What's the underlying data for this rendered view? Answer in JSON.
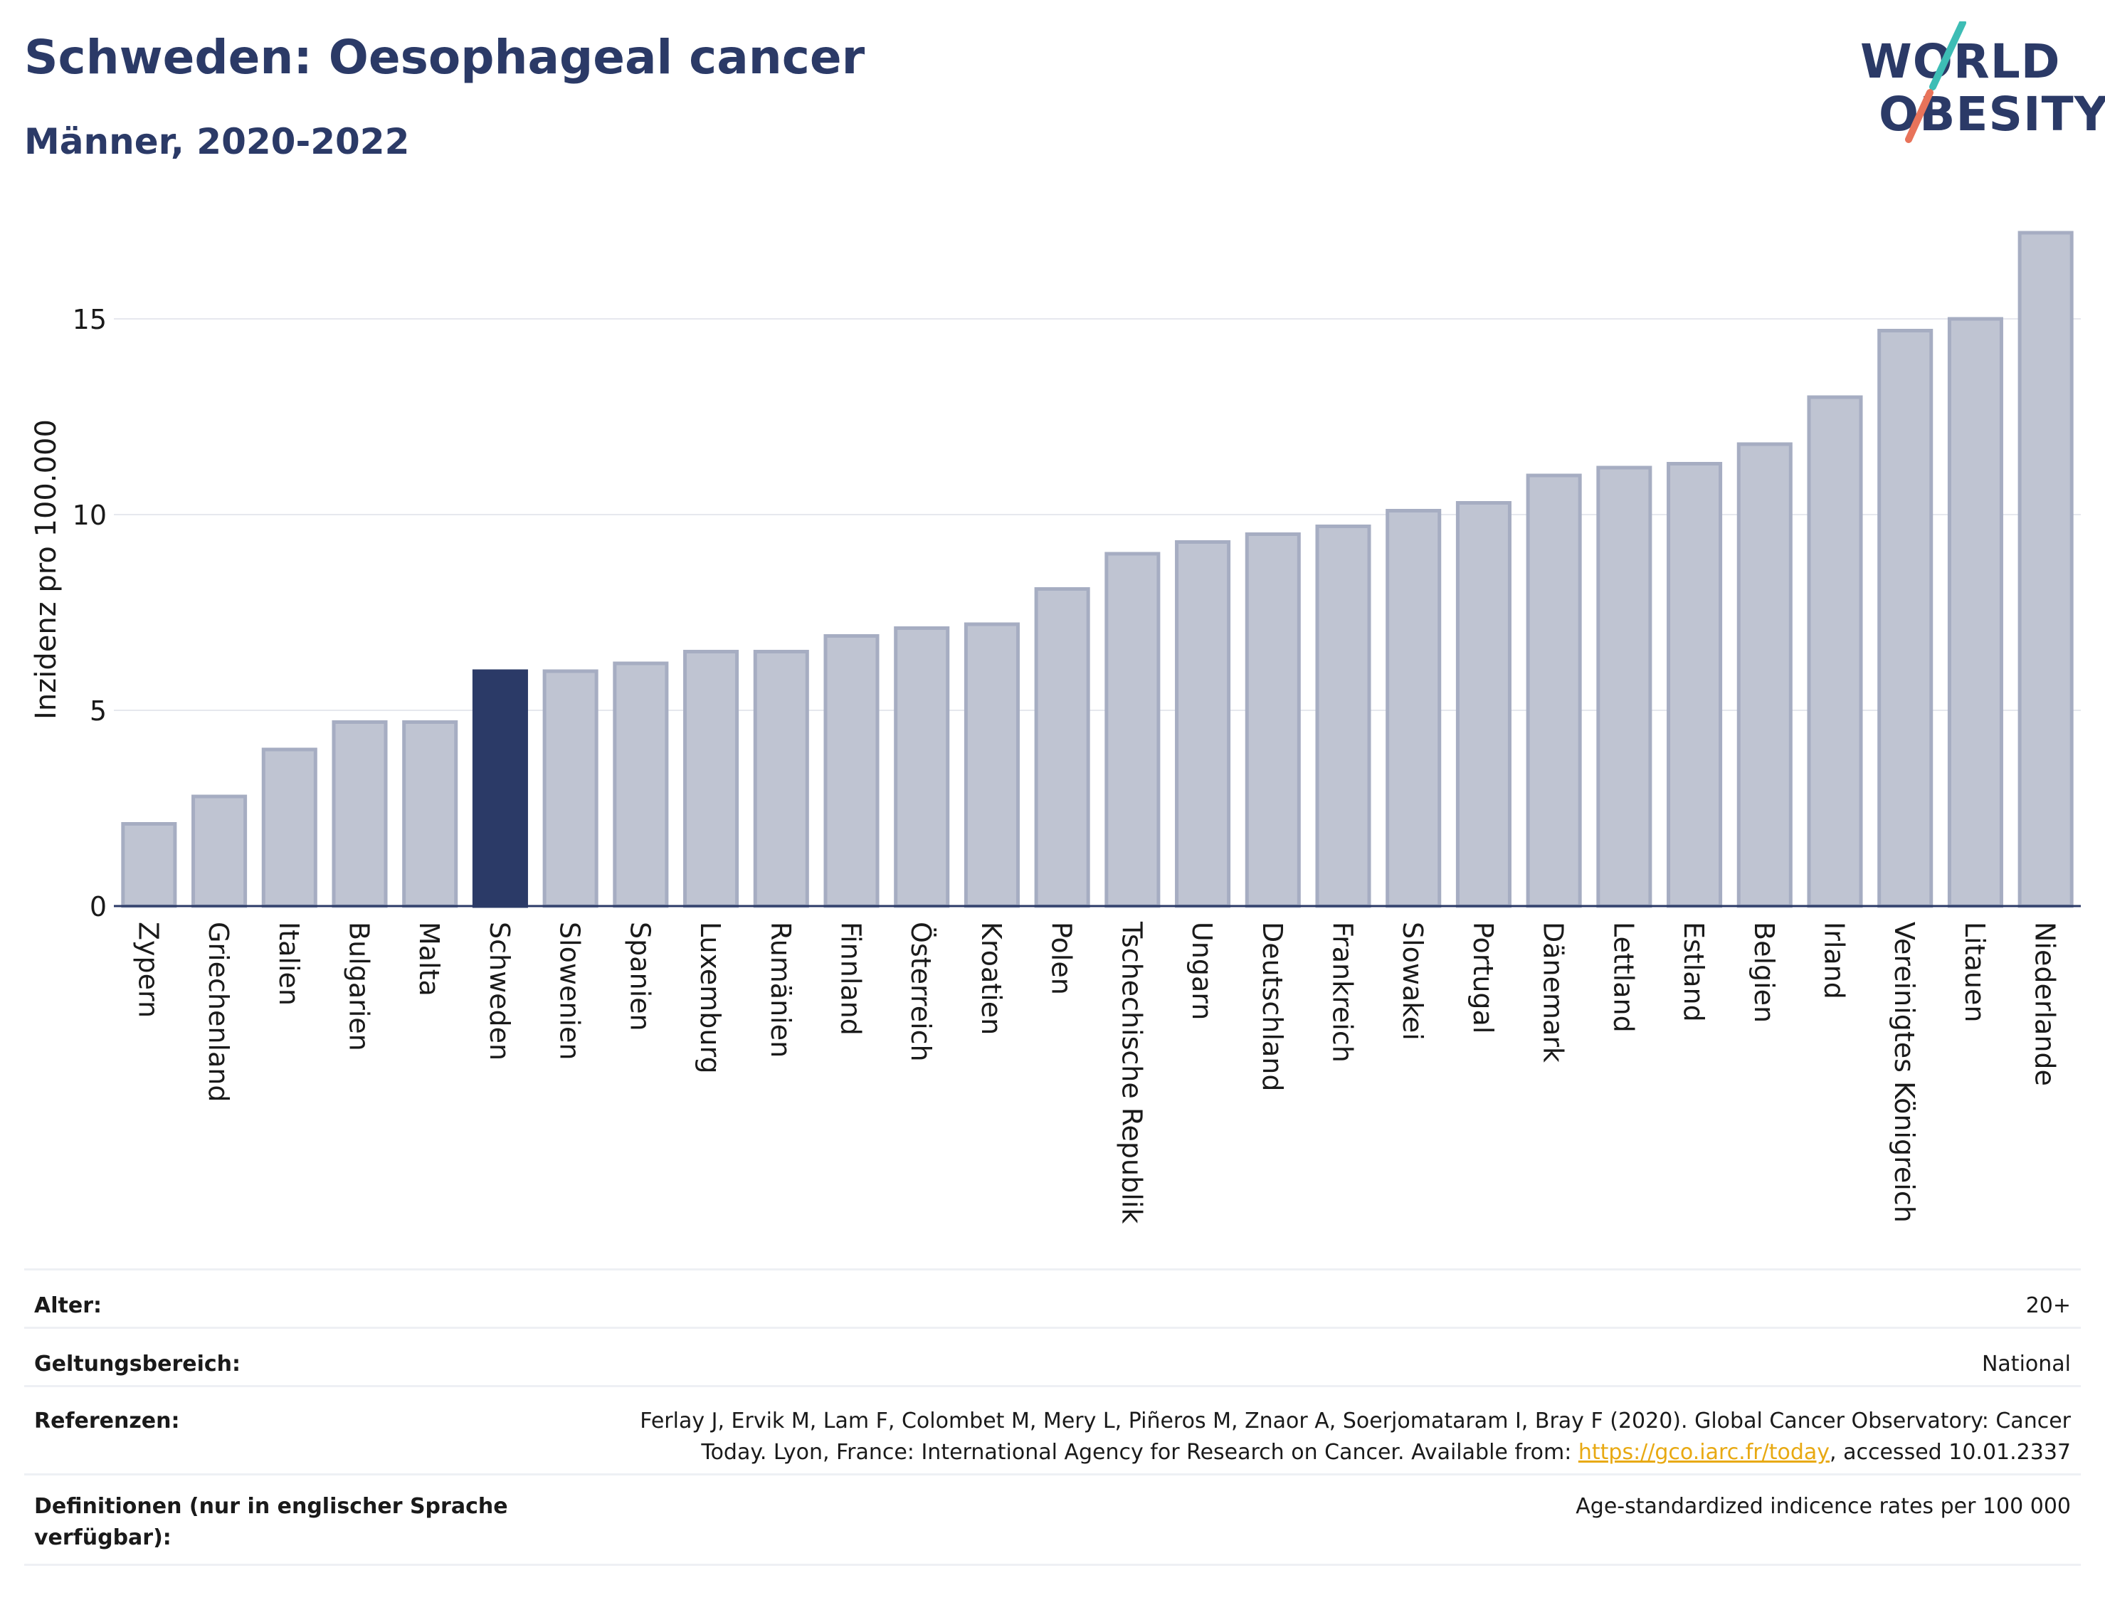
{
  "header": {
    "title": "Schweden: Oesophageal cancer",
    "subtitle": "Männer, 2020-2022"
  },
  "logo": {
    "line1": "WORLD",
    "line2": "OBESITY",
    "colors": {
      "text": "#2b3a67",
      "slash_top": "#3dbdb5",
      "slash_bottom": "#e8735a"
    }
  },
  "colors": {
    "bar": "#bfc4d2",
    "bar_border": "#a6adc2",
    "highlight": "#2b3a67",
    "grid": "#e6e8ee",
    "axis": "#2b3a67"
  },
  "chart_data": {
    "type": "bar",
    "ylabel": "Inzidenz pro 100.000",
    "ylim": [
      0,
      17.5
    ],
    "yticks": [
      0,
      5,
      10,
      15
    ],
    "highlight": "Schweden",
    "categories": [
      "Zypern",
      "Griechenland",
      "Italien",
      "Bulgarien",
      "Malta",
      "Schweden",
      "Slowenien",
      "Spanien",
      "Luxemburg",
      "Rumänien",
      "Finnland",
      "Österreich",
      "Kroatien",
      "Polen",
      "Tschechische Republik",
      "Ungarn",
      "Deutschland",
      "Frankreich",
      "Slowakei",
      "Portugal",
      "Dänemark",
      "Lettland",
      "Estland",
      "Belgien",
      "Irland",
      "Vereinigtes Königreich",
      "Litauen",
      "Niederlande"
    ],
    "values": [
      2.1,
      2.8,
      4.0,
      4.7,
      4.7,
      6.0,
      6.0,
      6.2,
      6.5,
      6.5,
      6.9,
      7.1,
      7.2,
      8.1,
      9.0,
      9.3,
      9.5,
      9.7,
      10.1,
      10.3,
      11.0,
      11.2,
      11.3,
      11.8,
      13.0,
      14.7,
      15.0,
      17.2
    ]
  },
  "meta": {
    "age_label": "Alter:",
    "age_value": "20+",
    "scope_label": "Geltungsbereich:",
    "scope_value": "National",
    "ref_label": "Referenzen:",
    "ref_line1": "Ferlay J, Ervik M, Lam F, Colombet M, Mery L, Piñeros M, Znaor A, Soerjomataram I, Bray F (2020). Global Cancer Observatory: Cancer",
    "ref_line2_pre": "Today. Lyon, France: International Agency for Research on Cancer. Available from: ",
    "ref_link": "https://gco.iarc.fr/today",
    "ref_line2_post": ", accessed 10.01.2337",
    "def_label_line1": "Definitionen (nur in englischer Sprache",
    "def_label_line2": "verfügbar):",
    "def_value": "Age-standardized indicence rates per 100 000"
  }
}
